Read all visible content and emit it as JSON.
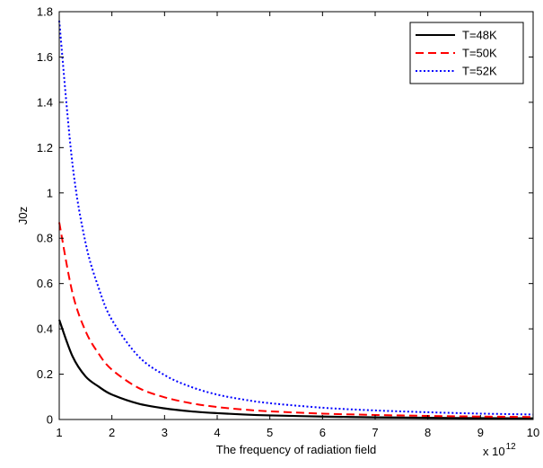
{
  "chart_data": {
    "type": "line",
    "title": "",
    "xlabel": "The frequency of radiation field",
    "ylabel": "J0z",
    "x_multiplier": "x 10",
    "x_multiplier_exponent": "12",
    "xlim": [
      1,
      10
    ],
    "ylim": [
      0,
      1.8
    ],
    "xticks": [
      "1",
      "2",
      "3",
      "4",
      "5",
      "6",
      "7",
      "8",
      "9",
      "10"
    ],
    "yticks": [
      "0",
      "0.2",
      "0.4",
      "0.6",
      "0.8",
      "1",
      "1.2",
      "1.4",
      "1.6",
      "1.8"
    ],
    "grid": false,
    "legend_position": "top-right",
    "x": [
      1,
      1.25,
      1.5,
      1.75,
      2,
      2.5,
      3,
      3.5,
      4,
      4.5,
      5,
      6,
      7,
      8,
      9,
      10
    ],
    "series": [
      {
        "name": "T=48K",
        "color": "#000000",
        "style": "solid",
        "values": [
          0.44,
          0.28,
          0.19,
          0.145,
          0.11,
          0.07,
          0.049,
          0.036,
          0.028,
          0.022,
          0.018,
          0.013,
          0.0095,
          0.0075,
          0.006,
          0.005
        ]
      },
      {
        "name": "T=50K",
        "color": "#ff0000",
        "style": "dashed",
        "values": [
          0.87,
          0.56,
          0.39,
          0.29,
          0.22,
          0.14,
          0.098,
          0.072,
          0.055,
          0.044,
          0.036,
          0.026,
          0.02,
          0.016,
          0.013,
          0.011
        ]
      },
      {
        "name": "T=52K",
        "color": "#0000ff",
        "style": "dotted",
        "values": [
          1.76,
          1.13,
          0.78,
          0.58,
          0.44,
          0.28,
          0.196,
          0.144,
          0.11,
          0.088,
          0.072,
          0.052,
          0.04,
          0.032,
          0.026,
          0.022
        ]
      }
    ]
  }
}
